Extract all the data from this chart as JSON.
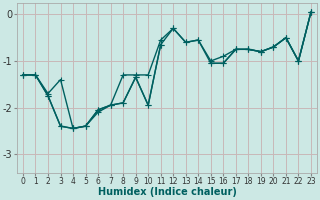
{
  "xlabel": "Humidex (Indice chaleur)",
  "ylabel": "",
  "xlim": [
    -0.5,
    23.5
  ],
  "ylim": [
    -3.4,
    0.25
  ],
  "yticks": [
    0,
    -1,
    -2,
    -3
  ],
  "xticks": [
    0,
    1,
    2,
    3,
    4,
    5,
    6,
    7,
    8,
    9,
    10,
    11,
    12,
    13,
    14,
    15,
    16,
    17,
    18,
    19,
    20,
    21,
    22,
    23
  ],
  "bg_color": "#cce8e4",
  "grid_color": "#c8b8b8",
  "line_color": "#006060",
  "line_width": 1.0,
  "marker": "+",
  "marker_size": 4,
  "series": [
    [
      -1.3,
      -1.3,
      -1.7,
      -1.4,
      -2.45,
      -2.4,
      -2.1,
      -1.95,
      -1.3,
      -1.3,
      -1.3,
      -0.55,
      -0.3,
      -0.6,
      -0.55,
      -1.0,
      -0.9,
      -0.75,
      -0.75,
      -0.8,
      -0.7,
      -0.5,
      -1.0,
      0.05
    ],
    [
      -1.3,
      -1.3,
      -1.75,
      -2.4,
      -2.45,
      -2.4,
      -2.05,
      -1.95,
      -1.9,
      -1.35,
      -1.95,
      -0.65,
      null,
      null,
      null,
      null,
      null,
      null,
      null,
      null,
      null,
      null,
      null,
      null
    ],
    [
      null,
      null,
      null,
      null,
      null,
      null,
      null,
      null,
      null,
      null,
      null,
      null,
      null,
      null,
      null,
      -1.05,
      -1.05,
      -0.75,
      -0.75,
      -0.8,
      -0.7,
      -0.5,
      -1.0,
      0.05
    ],
    [
      -1.3,
      -1.3,
      -1.75,
      -2.4,
      -2.45,
      -2.4,
      -2.05,
      -1.95,
      -1.9,
      -1.35,
      -1.95,
      -0.65,
      -0.3,
      -0.6,
      -0.55,
      -1.05,
      -1.05,
      -0.75,
      -0.75,
      -0.8,
      -0.7,
      -0.5,
      -1.0,
      0.05
    ]
  ]
}
